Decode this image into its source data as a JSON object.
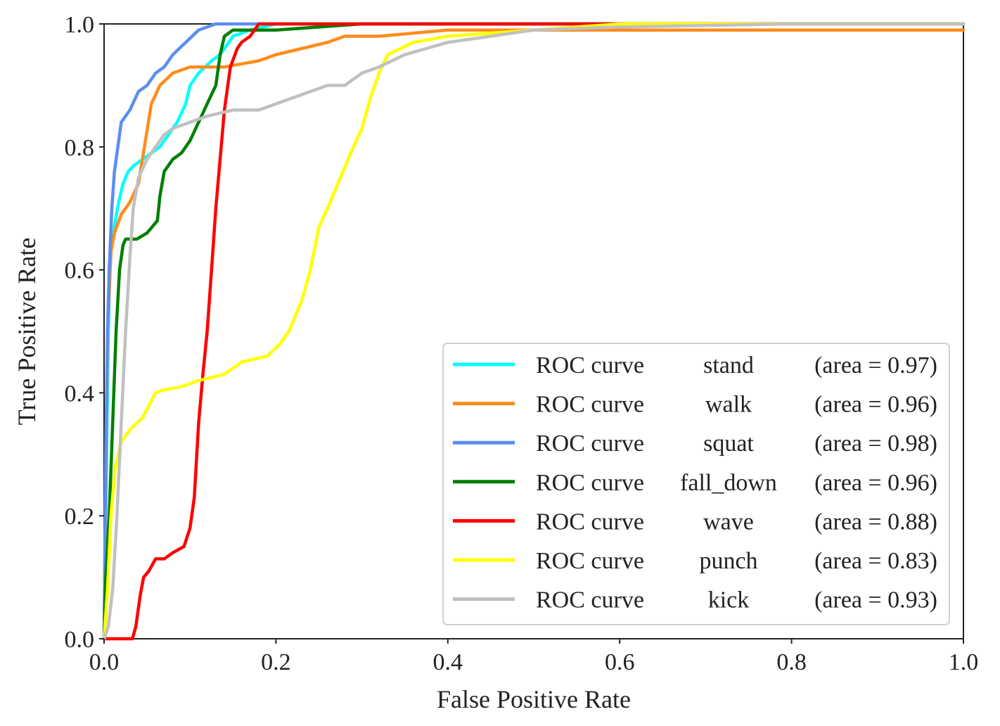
{
  "chart_data": {
    "type": "line",
    "title": "",
    "xlabel": "False Positive Rate",
    "ylabel": "True Positive Rate",
    "xlim": [
      0.0,
      1.0
    ],
    "ylim": [
      0.0,
      1.0
    ],
    "xticks": [
      "0.0",
      "0.2",
      "0.4",
      "0.6",
      "0.8",
      "1.0"
    ],
    "yticks": [
      "0.0",
      "0.2",
      "0.4",
      "0.6",
      "0.8",
      "1.0"
    ],
    "grid": false,
    "legend_position": "lower-right",
    "series": [
      {
        "name": "stand",
        "prefix": "ROC curve",
        "area_text": "(area = 0.97)",
        "color": "#00ffff",
        "x": [
          0.0,
          0.003,
          0.005,
          0.007,
          0.01,
          0.013,
          0.017,
          0.022,
          0.028,
          0.035,
          0.045,
          0.055,
          0.065,
          0.075,
          0.085,
          0.095,
          0.1,
          0.11,
          0.125,
          0.135,
          0.15,
          0.17,
          0.2,
          0.3,
          0.5,
          1.0
        ],
        "y": [
          0.0,
          0.3,
          0.5,
          0.62,
          0.65,
          0.68,
          0.71,
          0.74,
          0.76,
          0.77,
          0.78,
          0.79,
          0.8,
          0.82,
          0.84,
          0.87,
          0.9,
          0.92,
          0.94,
          0.95,
          0.98,
          0.99,
          1.0,
          1.0,
          1.0,
          1.0
        ]
      },
      {
        "name": "walk",
        "prefix": "ROC curve",
        "area_text": "(area = 0.96)",
        "color": "#ff8c1a",
        "x": [
          0.0,
          0.004,
          0.008,
          0.012,
          0.02,
          0.03,
          0.04,
          0.047,
          0.055,
          0.065,
          0.08,
          0.1,
          0.12,
          0.14,
          0.16,
          0.18,
          0.2,
          0.23,
          0.26,
          0.28,
          0.32,
          0.4,
          0.5,
          0.6,
          0.8,
          1.0
        ],
        "y": [
          0.0,
          0.5,
          0.63,
          0.66,
          0.69,
          0.71,
          0.74,
          0.8,
          0.87,
          0.9,
          0.92,
          0.93,
          0.93,
          0.93,
          0.935,
          0.94,
          0.95,
          0.96,
          0.97,
          0.98,
          0.98,
          0.99,
          0.99,
          0.99,
          0.99,
          0.99
        ]
      },
      {
        "name": "squat",
        "prefix": "ROC curve",
        "area_text": "(area = 0.98)",
        "color": "#5b8ef0",
        "x": [
          0.0,
          0.002,
          0.004,
          0.006,
          0.009,
          0.012,
          0.016,
          0.02,
          0.025,
          0.03,
          0.04,
          0.05,
          0.06,
          0.07,
          0.08,
          0.095,
          0.11,
          0.13,
          0.15,
          0.2,
          1.0
        ],
        "y": [
          0.0,
          0.3,
          0.5,
          0.6,
          0.7,
          0.76,
          0.8,
          0.84,
          0.85,
          0.86,
          0.89,
          0.9,
          0.92,
          0.93,
          0.95,
          0.97,
          0.99,
          1.0,
          1.0,
          1.0,
          1.0
        ]
      },
      {
        "name": "fall_down",
        "prefix": "ROC curve",
        "area_text": "(area = 0.96)",
        "color": "#007f00",
        "x": [
          0.0,
          0.002,
          0.006,
          0.01,
          0.014,
          0.018,
          0.022,
          0.025,
          0.03,
          0.038,
          0.05,
          0.062,
          0.065,
          0.07,
          0.08,
          0.09,
          0.1,
          0.11,
          0.12,
          0.13,
          0.135,
          0.14,
          0.15,
          0.2,
          0.3,
          0.4,
          1.0
        ],
        "y": [
          0.0,
          0.1,
          0.2,
          0.35,
          0.5,
          0.6,
          0.64,
          0.65,
          0.65,
          0.65,
          0.66,
          0.68,
          0.72,
          0.76,
          0.78,
          0.79,
          0.81,
          0.84,
          0.87,
          0.9,
          0.95,
          0.98,
          0.99,
          0.99,
          1.0,
          1.0,
          1.0
        ]
      },
      {
        "name": "wave",
        "prefix": "ROC curve",
        "area_text": "(area = 0.88)",
        "color": "#ff0000",
        "x": [
          0.0,
          0.033,
          0.037,
          0.042,
          0.046,
          0.052,
          0.06,
          0.07,
          0.08,
          0.093,
          0.1,
          0.105,
          0.11,
          0.115,
          0.12,
          0.125,
          0.13,
          0.135,
          0.14,
          0.147,
          0.155,
          0.16,
          0.17,
          0.18,
          0.2,
          1.0
        ],
        "y": [
          0.0,
          0.0,
          0.02,
          0.07,
          0.1,
          0.11,
          0.13,
          0.13,
          0.14,
          0.15,
          0.18,
          0.23,
          0.35,
          0.43,
          0.5,
          0.6,
          0.7,
          0.78,
          0.86,
          0.93,
          0.96,
          0.97,
          0.98,
          1.0,
          1.0,
          1.0
        ]
      },
      {
        "name": "punch",
        "prefix": "ROC curve",
        "area_text": "(area = 0.83)",
        "color": "#ffff00",
        "x": [
          0.0,
          0.004,
          0.008,
          0.013,
          0.02,
          0.03,
          0.045,
          0.06,
          0.07,
          0.09,
          0.11,
          0.14,
          0.16,
          0.19,
          0.205,
          0.215,
          0.23,
          0.24,
          0.25,
          0.26,
          0.275,
          0.29,
          0.3,
          0.31,
          0.32,
          0.33,
          0.36,
          0.4,
          0.5,
          0.6,
          1.0
        ],
        "y": [
          0.0,
          0.08,
          0.2,
          0.28,
          0.32,
          0.34,
          0.36,
          0.4,
          0.405,
          0.41,
          0.42,
          0.43,
          0.45,
          0.46,
          0.48,
          0.5,
          0.55,
          0.6,
          0.67,
          0.7,
          0.75,
          0.8,
          0.83,
          0.88,
          0.92,
          0.95,
          0.97,
          0.98,
          0.99,
          1.0,
          1.0
        ]
      },
      {
        "name": "kick",
        "prefix": "ROC curve",
        "area_text": "(area = 0.93)",
        "color": "#c0c0c0",
        "x": [
          0.0,
          0.005,
          0.01,
          0.015,
          0.02,
          0.025,
          0.03,
          0.034,
          0.04,
          0.05,
          0.06,
          0.07,
          0.08,
          0.1,
          0.12,
          0.15,
          0.18,
          0.2,
          0.22,
          0.24,
          0.26,
          0.28,
          0.3,
          0.32,
          0.35,
          0.4,
          0.45,
          0.5,
          0.6,
          0.8,
          1.0
        ],
        "y": [
          0.0,
          0.02,
          0.08,
          0.2,
          0.35,
          0.5,
          0.62,
          0.7,
          0.75,
          0.78,
          0.8,
          0.82,
          0.83,
          0.84,
          0.85,
          0.86,
          0.86,
          0.87,
          0.88,
          0.89,
          0.9,
          0.9,
          0.92,
          0.93,
          0.95,
          0.97,
          0.98,
          0.99,
          0.995,
          1.0,
          1.0
        ]
      }
    ]
  }
}
